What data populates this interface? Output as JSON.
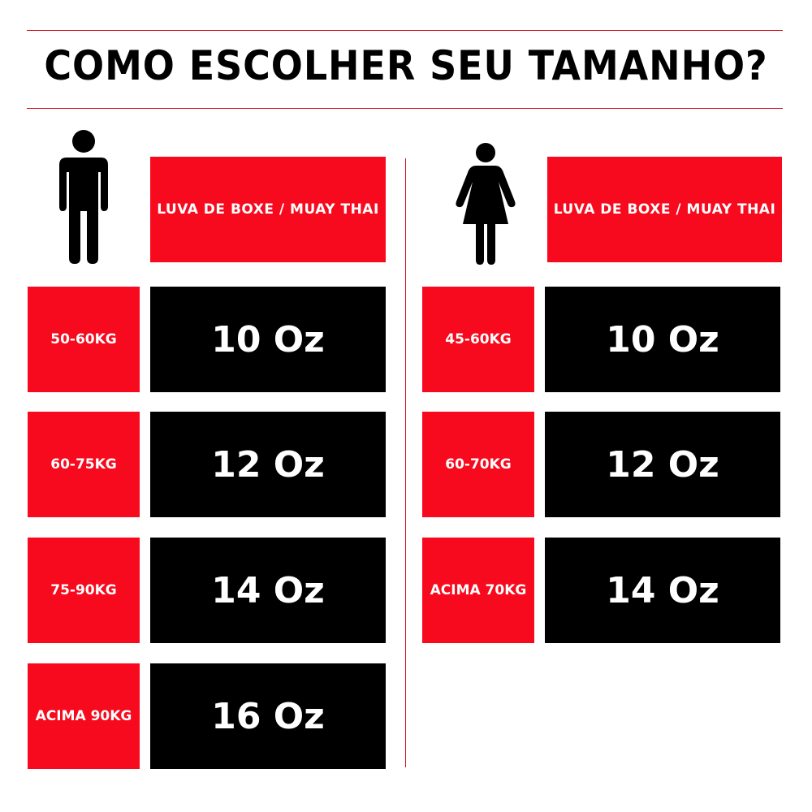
{
  "title": "COMO ESCOLHER SEU TAMANHO?",
  "colors": {
    "red": "#f70a1d",
    "black": "#000000",
    "line": "#d2162a"
  },
  "men": {
    "icon": "male-figure-icon",
    "header": "LUVA DE BOXE / MUAY THAI",
    "rows": [
      {
        "weight": "50-60KG",
        "size": "10 Oz"
      },
      {
        "weight": "60-75KG",
        "size": "12 Oz"
      },
      {
        "weight": "75-90KG",
        "size": "14 Oz"
      },
      {
        "weight": "ACIMA 90KG",
        "size": "16 Oz"
      }
    ]
  },
  "women": {
    "icon": "female-figure-icon",
    "header": "LUVA DE BOXE / MUAY THAI",
    "rows": [
      {
        "weight": "45-60KG",
        "size": "10 Oz"
      },
      {
        "weight": "60-70KG",
        "size": "12 Oz"
      },
      {
        "weight": "ACIMA 70KG",
        "size": "14 Oz"
      }
    ]
  }
}
